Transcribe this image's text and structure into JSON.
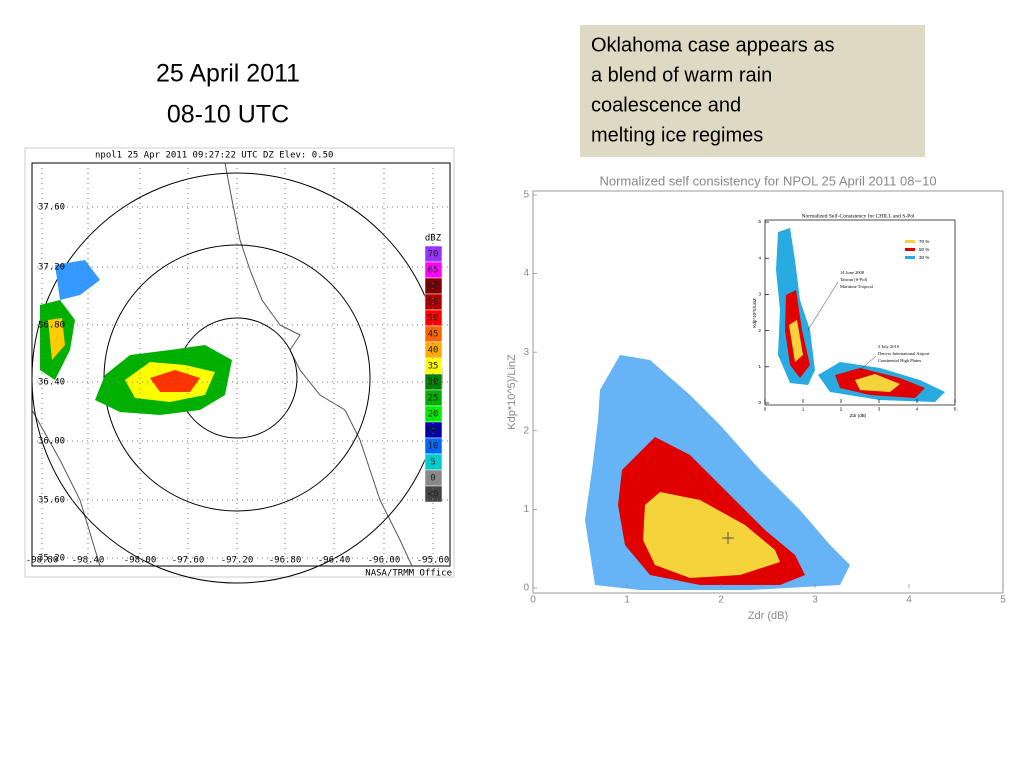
{
  "slide": {
    "title_lines": [
      "25 April 2011",
      "08-10 UTC"
    ],
    "note": [
      "Oklahoma case appears as",
      "a blend of warm rain",
      "coalescence and",
      "melting ice regimes"
    ]
  },
  "radar": {
    "header": "npol1  25 Apr 2011 09:27:22 UTC  DZ  Elev: 0.50",
    "lat_labels": [
      "37.60",
      "37.20",
      "36.80",
      "36.40",
      "36.00",
      "35.60",
      "35.20"
    ],
    "lon_labels": [
      "-98.80",
      "-98.40",
      "-98.00",
      "-97.60",
      "-97.20",
      "-96.80",
      "-96.40",
      "-96.00",
      "-95.60"
    ],
    "colorbar_labels": [
      "dBZ",
      "70",
      "65",
      "60",
      "55",
      "50",
      "45",
      "40",
      "35",
      "30",
      "25",
      "20",
      "15",
      "10",
      "5",
      "0",
      "<0"
    ],
    "credit": "NASA/TRMM Office"
  },
  "consistency_chart": {
    "title": "Normalized self consistency for NPOL 25 April 2011 08−10",
    "x_label": "Zdr (dB)",
    "y_label": "Kdp*10^5)/LinZ",
    "xlim": [
      0,
      5
    ],
    "ylim": [
      0,
      5
    ],
    "xticks": [
      0,
      1,
      2,
      3,
      4,
      5
    ],
    "yticks": [
      0,
      1,
      2,
      3,
      4,
      5
    ]
  },
  "inset": {
    "title": "Normalized Self-Consistency for CHILL and S-Pol",
    "legend": [
      "70 %",
      "50 %",
      "30 %"
    ],
    "annotation_1": [
      "14 June 2008",
      "Taiwan (S-Pol)",
      "Maritime Tropical"
    ],
    "annotation_2": [
      "3 July 2010",
      "Denver International Airport",
      "Continental High Plains"
    ],
    "x_label": "Zdr (dB)",
    "y_label": "Kdp*10^5/LinZ",
    "xlim": [
      0,
      5
    ],
    "ylim": [
      0,
      5
    ],
    "xticks": [
      0,
      1,
      2,
      3,
      4,
      5
    ],
    "yticks": [
      0,
      1,
      2,
      3,
      4,
      5
    ]
  }
}
